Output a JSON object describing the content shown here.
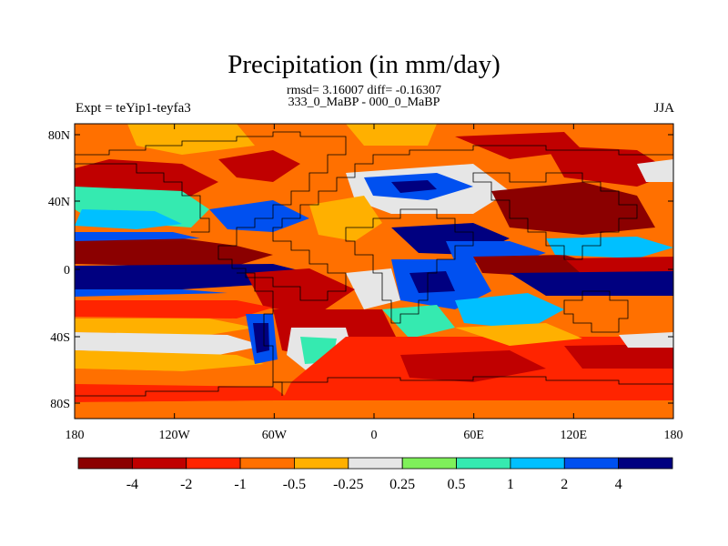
{
  "title": "Precipitation (in mm/day)",
  "subtitle_stats": "rmsd= 3.16007 diff= -0.16307",
  "subtitle_periods": "333_0_MaBP - 000_0_MaBP",
  "left_label": "Expt = teYip1-teyfa3",
  "right_label": "JJA",
  "x_ticks": [
    "180",
    "120W",
    "60W",
    "0",
    "60E",
    "120E",
    "180"
  ],
  "y_ticks": [
    "80N",
    "40N",
    "0",
    "40S",
    "80S"
  ],
  "colorbar": {
    "colors": [
      "#8b0000",
      "#c00000",
      "#ff2400",
      "#ff7000",
      "#ffb000",
      "#e6e6e6",
      "#7ff05a",
      "#35eab0",
      "#00c0ff",
      "#0050f0",
      "#000080"
    ],
    "labels": [
      "-4",
      "-2",
      "-1",
      "-0.5",
      "-0.25",
      "0.25",
      "0.5",
      "1",
      "2",
      "4"
    ]
  }
}
